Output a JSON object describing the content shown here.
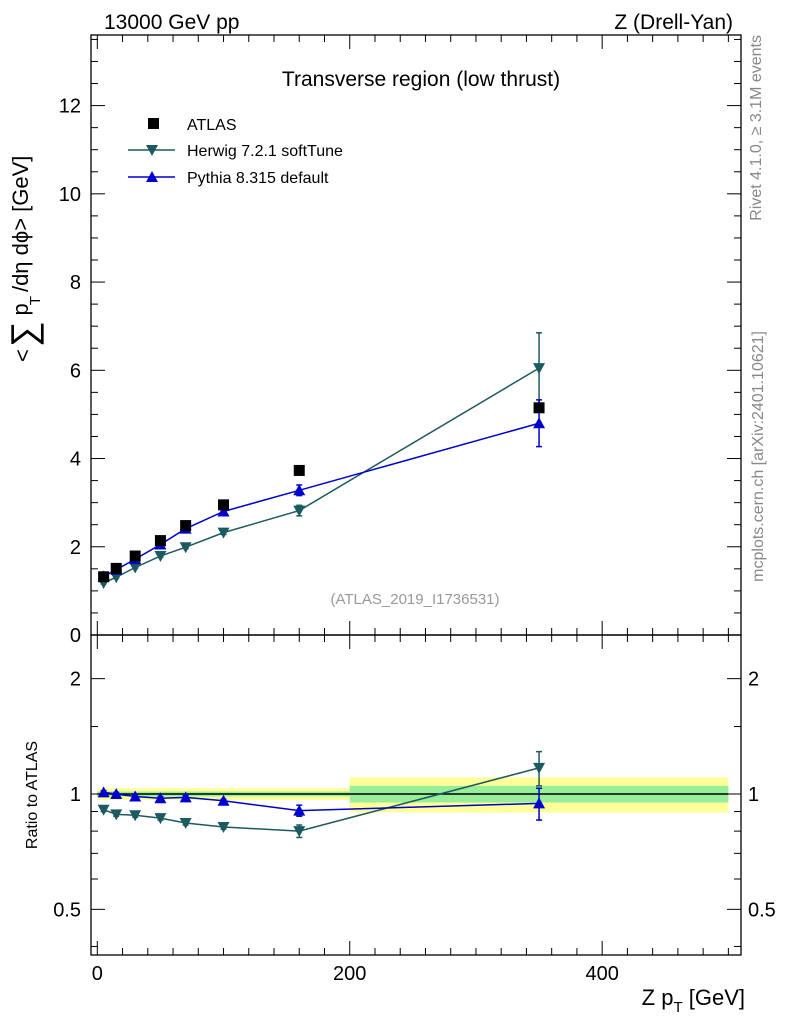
{
  "header": {
    "left_title": "13000 GeV pp",
    "right_title": "Z (Drell-Yan)"
  },
  "side_text": {
    "rivet": "Rivet 4.1.0, ≥ 3.1M events",
    "mcplots": "mcplots.cern.ch [arXiv:2401.10621]"
  },
  "chart_data": {
    "type": "scatter",
    "title": "Transverse region (low thrust)",
    "analysis_label": "(ATLAS_2019_I1736531)",
    "xlabel": "Z p_T [GeV]",
    "ylabel": "< ∑ p_T /dη dφ> [GeV]",
    "xlim": [
      -5,
      510
    ],
    "main_ylim": [
      0,
      13.6
    ],
    "main_yticks": [
      0,
      2,
      4,
      6,
      8,
      10,
      12
    ],
    "xticks": [
      0,
      200,
      400
    ],
    "ratio_ylabel": "Ratio to ATLAS",
    "ratio_yticks": [
      "0.5",
      "1",
      "2"
    ],
    "legend": {
      "position": "top-left",
      "entries": [
        "ATLAS",
        "Herwig 7.2.1 softTune",
        "Pythia 8.315 default"
      ]
    },
    "x": [
      5,
      15,
      30,
      50,
      70,
      100,
      160,
      350
    ],
    "series": [
      {
        "name": "ATLAS",
        "color": "#000000",
        "marker": "square",
        "values": [
          1.32,
          1.51,
          1.79,
          2.14,
          2.48,
          2.95,
          3.73,
          5.15
        ]
      },
      {
        "name": "Herwig 7.2.1 softTune",
        "color": "#1c5a5f",
        "marker": "triangle-down",
        "values": [
          1.18,
          1.31,
          1.53,
          1.79,
          1.99,
          2.32,
          2.82,
          6.05
        ],
        "errors": [
          0.02,
          0.02,
          0.02,
          0.03,
          0.03,
          0.04,
          0.12,
          0.8
        ]
      },
      {
        "name": "Pythia 8.315 default",
        "color": "#0000cc",
        "marker": "triangle-up",
        "values": [
          1.33,
          1.48,
          1.72,
          2.05,
          2.41,
          2.8,
          3.28,
          4.8
        ],
        "errors": [
          0.02,
          0.02,
          0.02,
          0.03,
          0.03,
          0.04,
          0.12,
          0.53
        ]
      }
    ],
    "ratio": {
      "herwig": [
        0.91,
        0.885,
        0.88,
        0.865,
        0.84,
        0.82,
        0.8,
        1.17
      ],
      "herwig_err": [
        0.01,
        0.01,
        0.01,
        0.01,
        0.01,
        0.01,
        0.03,
        0.12
      ],
      "pythia": [
        1.01,
        1.0,
        0.985,
        0.975,
        0.98,
        0.96,
        0.905,
        0.945
      ],
      "pythia_err": [
        0.01,
        0.01,
        0.01,
        0.01,
        0.01,
        0.01,
        0.03,
        0.09
      ],
      "bands": [
        {
          "x0": 0,
          "x1": 200,
          "stat": 0.015,
          "total": 0.035
        },
        {
          "x0": 200,
          "x1": 500,
          "stat": 0.05,
          "total": 0.105
        }
      ]
    }
  }
}
